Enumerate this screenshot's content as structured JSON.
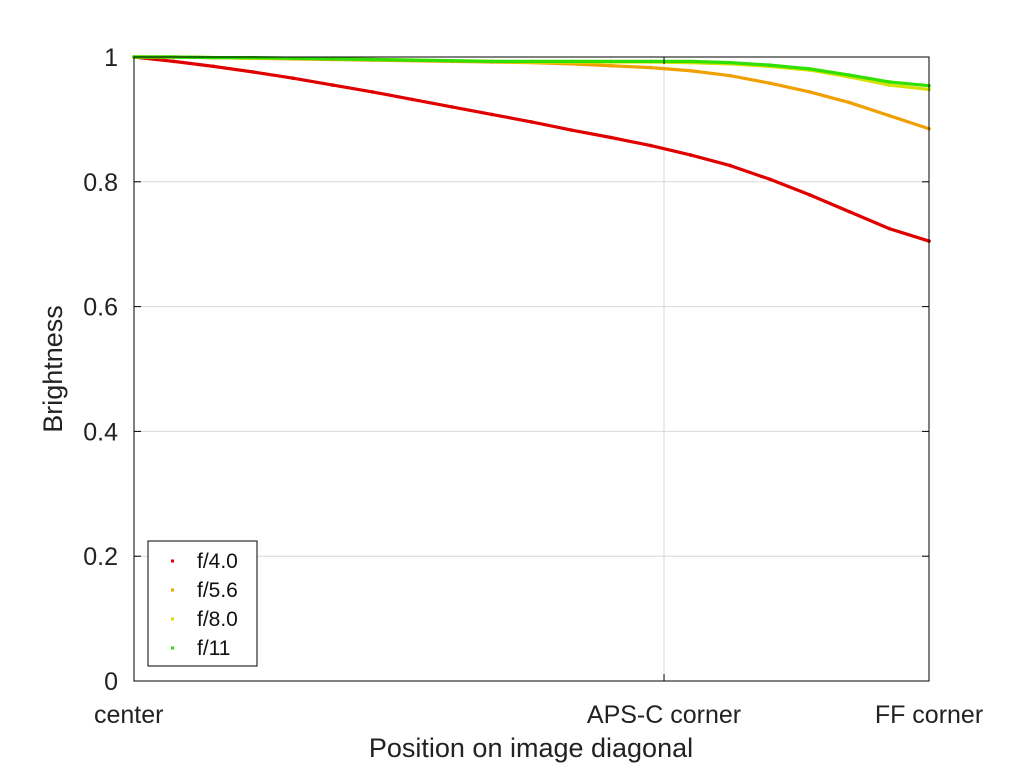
{
  "chart_data": {
    "type": "scatter",
    "title": "",
    "xlabel": "Position on image diagonal",
    "ylabel": "Brightness",
    "xlim": [
      0,
      1
    ],
    "ylim": [
      0,
      1
    ],
    "grid": true,
    "legend_position": "bottom-left",
    "x_ticks": [
      {
        "value": 0,
        "label": "center"
      },
      {
        "value": 0.6667,
        "label": "APS-C corner"
      },
      {
        "value": 1,
        "label": "FF corner"
      }
    ],
    "y_ticks": [
      {
        "value": 0,
        "label": "0"
      },
      {
        "value": 0.2,
        "label": "0.2"
      },
      {
        "value": 0.4,
        "label": "0.4"
      },
      {
        "value": 0.6,
        "label": "0.6"
      },
      {
        "value": 0.8,
        "label": "0.8"
      },
      {
        "value": 1,
        "label": "1"
      }
    ],
    "series": [
      {
        "name": "f/4.0",
        "color": "#e00000",
        "x": [
          0,
          0.05,
          0.1,
          0.15,
          0.2,
          0.25,
          0.3,
          0.35,
          0.4,
          0.45,
          0.5,
          0.55,
          0.6,
          0.65,
          0.7,
          0.75,
          0.8,
          0.85,
          0.9,
          0.95,
          1.0
        ],
        "y": [
          1.0,
          0.993,
          0.985,
          0.976,
          0.966,
          0.955,
          0.944,
          0.932,
          0.92,
          0.908,
          0.896,
          0.883,
          0.871,
          0.858,
          0.843,
          0.826,
          0.804,
          0.779,
          0.752,
          0.725,
          0.705
        ]
      },
      {
        "name": "f/5.6",
        "color": "#f0a000",
        "x": [
          0,
          0.05,
          0.1,
          0.15,
          0.2,
          0.25,
          0.3,
          0.35,
          0.4,
          0.45,
          0.5,
          0.55,
          0.6,
          0.65,
          0.7,
          0.75,
          0.8,
          0.85,
          0.9,
          0.95,
          1.0
        ],
        "y": [
          1.0,
          1.0,
          0.999,
          0.998,
          0.997,
          0.996,
          0.995,
          0.994,
          0.993,
          0.992,
          0.991,
          0.989,
          0.986,
          0.983,
          0.978,
          0.97,
          0.958,
          0.944,
          0.927,
          0.906,
          0.885
        ]
      },
      {
        "name": "f/8.0",
        "color": "#d8e000",
        "x": [
          0,
          0.05,
          0.1,
          0.15,
          0.2,
          0.25,
          0.3,
          0.35,
          0.4,
          0.45,
          0.5,
          0.55,
          0.6,
          0.65,
          0.7,
          0.75,
          0.8,
          0.85,
          0.9,
          0.95,
          1.0
        ],
        "y": [
          1.0,
          1.0,
          0.999,
          0.998,
          0.998,
          0.997,
          0.996,
          0.995,
          0.994,
          0.993,
          0.992,
          0.992,
          0.992,
          0.992,
          0.991,
          0.989,
          0.985,
          0.979,
          0.968,
          0.955,
          0.948
        ]
      },
      {
        "name": "f/11",
        "color": "#30e000",
        "x": [
          0,
          0.05,
          0.1,
          0.15,
          0.2,
          0.25,
          0.3,
          0.35,
          0.4,
          0.45,
          0.5,
          0.55,
          0.6,
          0.65,
          0.7,
          0.75,
          0.8,
          0.85,
          0.9,
          0.95,
          1.0
        ],
        "y": [
          1.0,
          1.0,
          0.999,
          0.999,
          0.998,
          0.997,
          0.996,
          0.995,
          0.994,
          0.993,
          0.993,
          0.993,
          0.993,
          0.993,
          0.993,
          0.991,
          0.987,
          0.981,
          0.971,
          0.96,
          0.954
        ]
      }
    ]
  }
}
